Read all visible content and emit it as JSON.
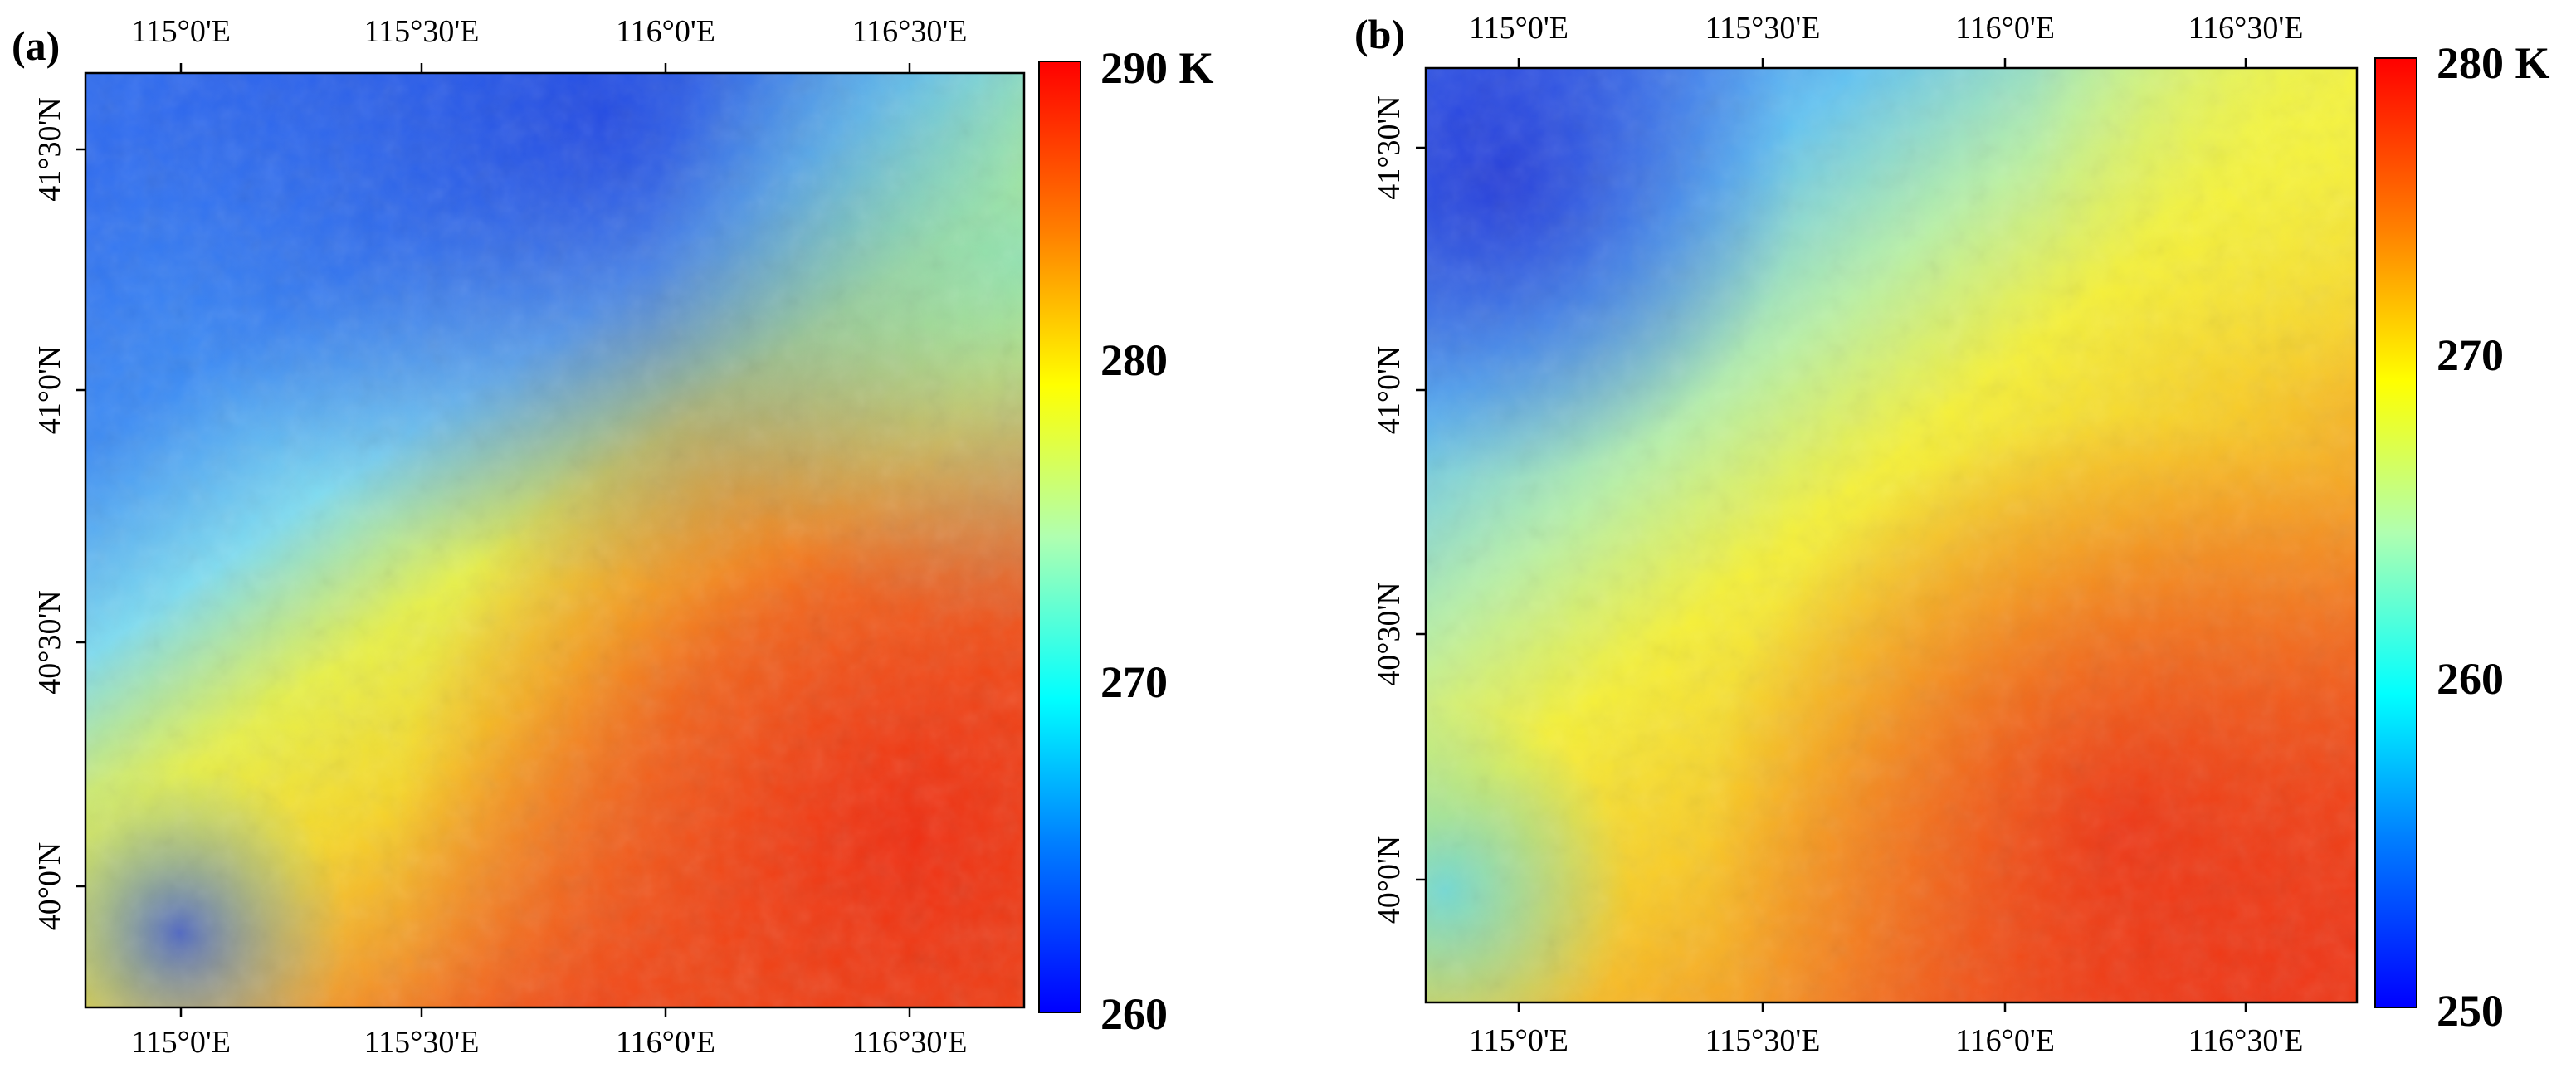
{
  "panels": [
    {
      "id": "a",
      "label": "(a)",
      "x_ticks": [
        "115°0'E",
        "115°30'E",
        "116°0'E",
        "116°30'E"
      ],
      "y_ticks": [
        "41°30'N",
        "41°0'N",
        "40°30'N",
        "40°0'N"
      ],
      "colorbar": {
        "top_label": "290 K",
        "mid_labels": [
          "280",
          "270"
        ],
        "bottom_label": "260",
        "min": 260,
        "max": 290
      },
      "field": "temperature_a"
    },
    {
      "id": "b",
      "label": "(b)",
      "x_ticks": [
        "115°0'E",
        "115°30'E",
        "116°0'E",
        "116°30'E"
      ],
      "y_ticks": [
        "41°30'N",
        "41°0'N",
        "40°30'N",
        "40°0'N"
      ],
      "colorbar": {
        "top_label": "280 K",
        "mid_labels": [
          "270",
          "260"
        ],
        "bottom_label": "250",
        "min": 250,
        "max": 280
      },
      "field": "temperature_b"
    }
  ],
  "colors": {
    "jet": [
      "#00007f",
      "#0000ff",
      "#007fff",
      "#00ffff",
      "#7fff7f",
      "#ffff00",
      "#ff7f00",
      "#ff0000",
      "#7f0000"
    ]
  }
}
